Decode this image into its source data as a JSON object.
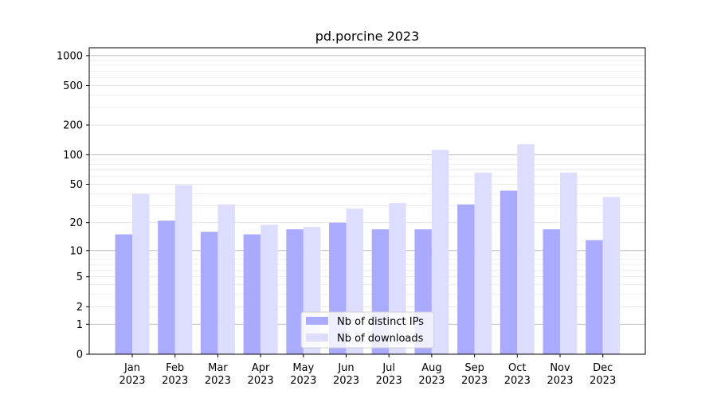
{
  "chart_data": {
    "type": "bar",
    "title": "pd.porcine 2023",
    "xlabel": "",
    "ylabel": "",
    "categories": [
      "Jan\n2023",
      "Feb\n2023",
      "Mar\n2023",
      "Apr\n2023",
      "May\n2023",
      "Jun\n2023",
      "Jul\n2023",
      "Aug\n2023",
      "Sep\n2023",
      "Oct\n2023",
      "Nov\n2023",
      "Dec\n2023"
    ],
    "series": [
      {
        "name": "Nb of distinct IPs",
        "color": "#aaaaff",
        "values": [
          15,
          21,
          16,
          15,
          17,
          20,
          17,
          17,
          31,
          43,
          17,
          13
        ]
      },
      {
        "name": "Nb of downloads",
        "color": "#ddddff",
        "values": [
          40,
          49,
          31,
          19,
          18,
          28,
          32,
          112,
          66,
          128,
          66,
          37
        ]
      }
    ],
    "yscale": "symlog",
    "ylim": [
      0,
      1200
    ],
    "yticks": [
      0,
      1,
      2,
      5,
      10,
      20,
      50,
      100,
      200,
      500,
      1000
    ],
    "ytick_labels": [
      "0",
      "1",
      "2",
      "5",
      "10",
      "20",
      "50",
      "100",
      "200",
      "500",
      "1000"
    ],
    "grid": true,
    "legend_position": "lower-center"
  }
}
